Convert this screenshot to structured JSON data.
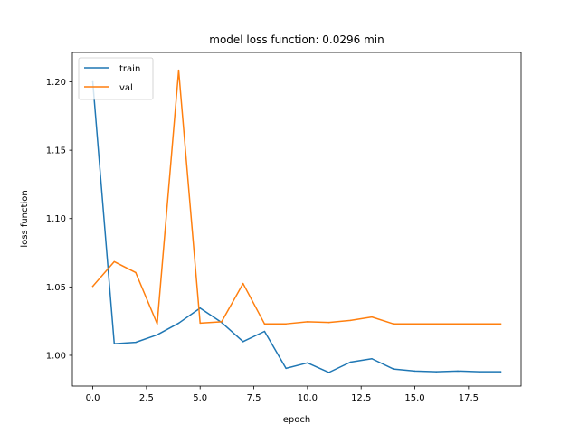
{
  "chart_data": {
    "type": "line",
    "title": "model loss function: 0.0296 min",
    "xlabel": "epoch",
    "ylabel": "loss function",
    "xlim": [
      -0.95,
      19.95
    ],
    "ylim": [
      0.9775,
      1.2215
    ],
    "xticks": [
      0.0,
      2.5,
      5.0,
      7.5,
      10.0,
      12.5,
      15.0,
      17.5
    ],
    "xtick_labels": [
      "0.0",
      "2.5",
      "5.0",
      "7.5",
      "10.0",
      "12.5",
      "15.0",
      "17.5"
    ],
    "yticks": [
      1.0,
      1.05,
      1.1,
      1.15,
      1.2
    ],
    "ytick_labels": [
      "1.00",
      "1.05",
      "1.10",
      "1.15",
      "1.20"
    ],
    "grid": false,
    "legend_position": "upper left",
    "x": [
      0,
      1,
      2,
      3,
      4,
      5,
      6,
      7,
      8,
      9,
      10,
      11,
      12,
      13,
      14,
      15,
      16,
      17,
      18,
      19
    ],
    "series": [
      {
        "name": "train",
        "color": "#1f77b4",
        "values": [
          1.2,
          1.0085,
          1.0095,
          1.015,
          1.0235,
          1.0345,
          1.024,
          1.01,
          1.0175,
          0.9905,
          0.9945,
          0.9875,
          0.995,
          0.9975,
          0.99,
          0.9885,
          0.988,
          0.9885,
          0.988,
          0.988
        ]
      },
      {
        "name": "val",
        "color": "#ff7f0e",
        "values": [
          1.0505,
          1.0685,
          1.0605,
          1.023,
          1.2085,
          1.0235,
          1.0245,
          1.0525,
          1.023,
          1.023,
          1.0245,
          1.024,
          1.0255,
          1.028,
          1.023,
          1.023,
          1.023,
          1.023,
          1.023,
          1.023
        ]
      }
    ]
  }
}
